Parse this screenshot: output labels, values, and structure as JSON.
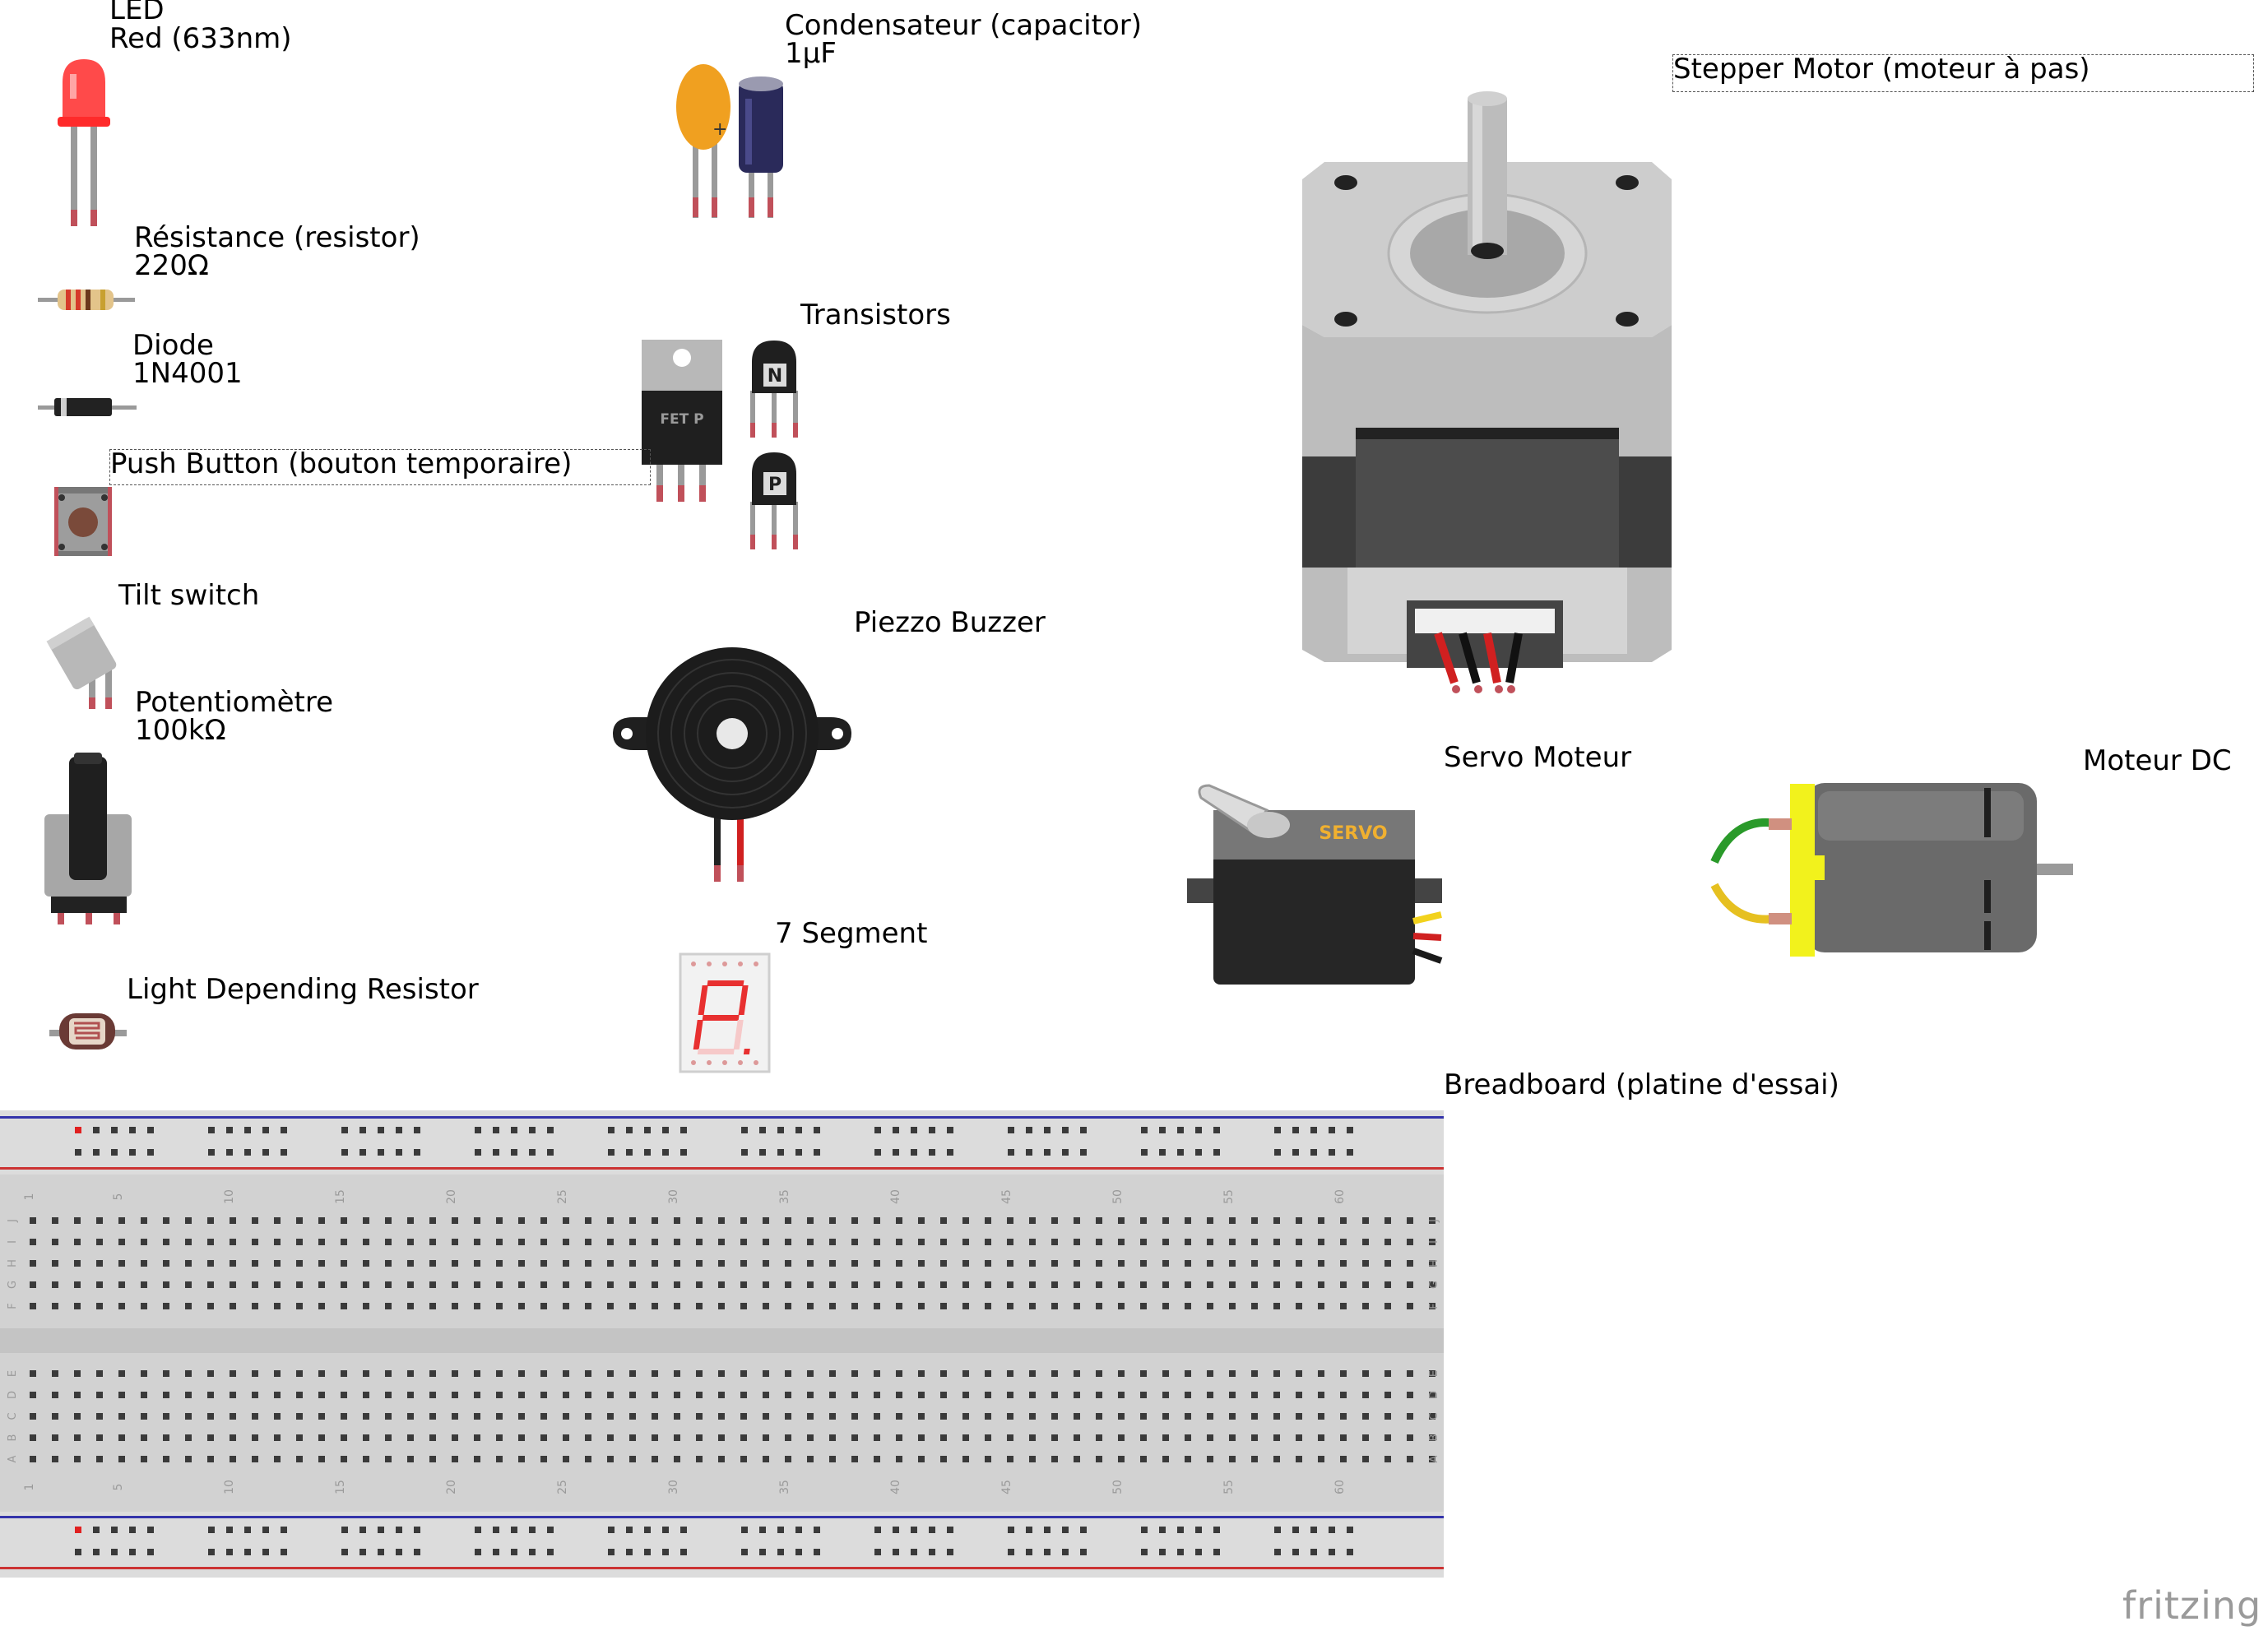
{
  "labels": {
    "led_line1": "LED",
    "led_line2": "Red (633nm)",
    "capacitor_line1": "Condensateur (capacitor)",
    "capacitor_line2": "1µF",
    "stepper": "Stepper Motor (moteur à pas)",
    "resistor_line1": "Résistance (resistor)",
    "resistor_line2": "220Ω",
    "transistors": "Transistors",
    "diode_line1": "Diode",
    "diode_line2": "1N4001",
    "push_button": "Push Button (bouton temporaire)",
    "tilt_switch": "Tilt switch",
    "piezzo": "Piezzo Buzzer",
    "pot_line1": "Potentiomètre",
    "pot_line2": "100kΩ",
    "servo": "Servo Moteur",
    "dc_motor": "Moteur DC",
    "seven_segment": "7 Segment",
    "ldr": "Light Depending Resistor",
    "breadboard": "Breadboard (platine d'essai)"
  },
  "part_text": {
    "fet": "FET P",
    "npn": "N",
    "pnp": "P",
    "servo_brand": "SERVO",
    "cap_plus": "+"
  },
  "breadboard": {
    "column_numbers": [
      "1",
      "5",
      "10",
      "15",
      "20",
      "25",
      "30",
      "35",
      "40",
      "45",
      "50",
      "55",
      "60"
    ],
    "row_letters_top": [
      "J",
      "I",
      "H",
      "G",
      "F"
    ],
    "row_letters_bottom": [
      "E",
      "D",
      "C",
      "B",
      "A"
    ]
  },
  "watermark": "fritzing",
  "colors": {
    "led_red": "#ff3b3b",
    "cap_orange": "#f0a020",
    "cap_blue": "#2a2a5a",
    "stepper_grey": "#c8c8c8",
    "dc_yellow": "#f2f21c",
    "breadboard_bg": "#dcdcdc",
    "rail_red": "#cc3333",
    "rail_blue": "#3333aa"
  }
}
